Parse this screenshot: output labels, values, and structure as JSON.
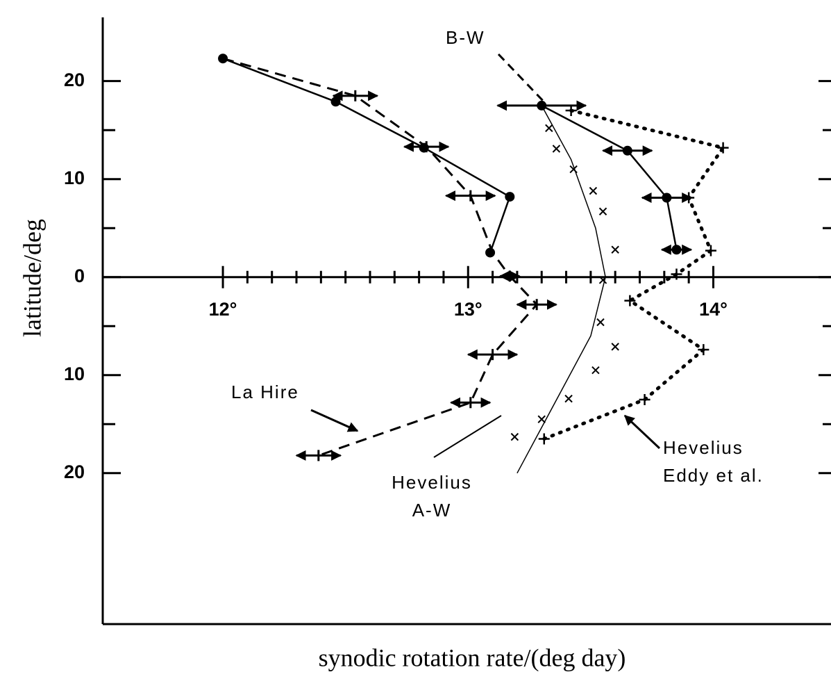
{
  "chart_data": {
    "type": "line",
    "xlabel": "synodic rotation rate/(deg day)",
    "ylabel": "latitude/deg",
    "xlim": [
      11.51,
      14.48
    ],
    "ylim": [
      -35.4,
      26.5
    ],
    "xticks": [
      {
        "value": 12,
        "label": "12°"
      },
      {
        "value": 13,
        "label": "13°"
      },
      {
        "value": 14,
        "label": "14°"
      }
    ],
    "xminor": [
      12.1,
      12.2,
      12.3,
      12.4,
      12.5,
      12.6,
      12.7,
      12.8,
      12.9,
      13.1,
      13.2,
      13.3,
      13.4,
      13.5,
      13.6,
      13.7,
      13.8,
      13.9
    ],
    "yticks": [
      20,
      10,
      0,
      {
        "value": -10,
        "label": "10"
      },
      {
        "value": -20,
        "label": "20"
      }
    ],
    "yminor": [
      15,
      5,
      -5,
      -15
    ],
    "series": [
      {
        "style": "dashed",
        "marker": "none",
        "color": "#000",
        "x": [
          12.0,
          12.54,
          12.83,
          13.01,
          13.1,
          13.17,
          13.28,
          13.1,
          13.01,
          12.39
        ],
        "values": [
          22.3,
          18.5,
          13.3,
          8.3,
          2.5,
          0.1,
          -2.8,
          -7.9,
          -12.8,
          -18.2
        ],
        "xerr": [
          null,
          0.09,
          0.09,
          0.1,
          null,
          0.04,
          0.08,
          0.1,
          0.08,
          0.09
        ]
      },
      {
        "style": "solid",
        "marker": "dot",
        "color": "#000",
        "x": [
          12.0,
          12.46,
          12.82,
          13.17,
          13.09
        ],
        "values": [
          22.3,
          17.9,
          13.2,
          8.2,
          2.5
        ]
      },
      {
        "style": "solid",
        "marker": "dot",
        "color": "#000",
        "x": [
          13.3,
          13.65,
          13.81,
          13.85
        ],
        "values": [
          17.5,
          12.9,
          8.1,
          2.8
        ],
        "xerr": [
          0.18,
          0.1,
          0.1,
          0.06
        ]
      },
      {
        "style": "dotted",
        "marker": "plus",
        "color": "#000",
        "x": [
          13.42,
          14.04,
          13.9,
          13.99,
          13.85,
          13.66,
          13.96,
          13.72,
          13.31
        ],
        "values": [
          17.0,
          13.2,
          8.1,
          2.7,
          0.3,
          -2.4,
          -7.4,
          -12.5,
          -16.5
        ]
      },
      {
        "style": "none",
        "marker": "cross",
        "color": "#000",
        "x": [
          13.33,
          13.36,
          13.43,
          13.51,
          13.55,
          13.6,
          13.55,
          13.54,
          13.6,
          13.52,
          13.41,
          13.3,
          13.19
        ],
        "values": [
          15.2,
          13.1,
          11.0,
          8.8,
          6.7,
          2.8,
          -0.3,
          -4.6,
          -7.1,
          -9.5,
          -12.4,
          -14.5,
          -16.3
        ]
      },
      {
        "style": "thin",
        "marker": "none",
        "color": "#000",
        "x": [
          13.3,
          13.42,
          13.52,
          13.56,
          13.5,
          13.35,
          13.2
        ],
        "values": [
          17.5,
          12.0,
          5.0,
          0.0,
          -6.0,
          -13.0,
          -20.0
        ]
      }
    ],
    "annotations": [
      {
        "lines": [
          "B-W"
        ]
      },
      {
        "lines": [
          "La Hire"
        ]
      },
      {
        "lines": [
          "Hevelius",
          "A-W"
        ]
      },
      {
        "lines": [
          "Hevelius",
          "Eddy et al."
        ]
      }
    ]
  }
}
